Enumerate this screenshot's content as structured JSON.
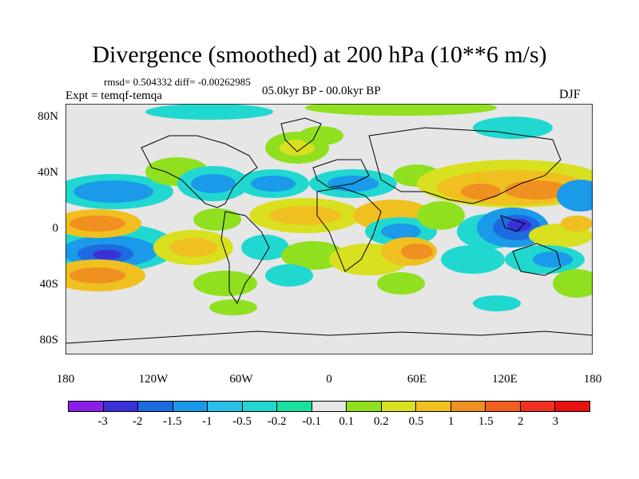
{
  "title": "Divergence (smoothed) at 200 hPa (10**6 m/s)",
  "stats": "rmsd= 0.504332 diff= -0.00262985",
  "expt": "Expt = temqf-temqa",
  "period": "05.0kyr BP - 00.0kyr BP",
  "season": "DJF",
  "lat_labels": [
    "80N",
    "40N",
    "0",
    "40S",
    "80S"
  ],
  "lon_labels": [
    "180",
    "120W",
    "60W",
    "0",
    "60E",
    "120E",
    "180"
  ],
  "colorbar": {
    "labels": [
      "-3",
      "-2",
      "-1.5",
      "-1",
      "-0.5",
      "-0.2",
      "-0.1",
      "0.1",
      "0.2",
      "0.5",
      "1",
      "1.5",
      "2",
      "3"
    ],
    "colors": [
      "#8a20e8",
      "#3a30d8",
      "#1e6ae0",
      "#1a9ae8",
      "#28c0e8",
      "#20d8d0",
      "#18e0a0",
      "#e6e6e6",
      "#90e020",
      "#d8e020",
      "#f0c020",
      "#f09020",
      "#f06020",
      "#f03020",
      "#e81010"
    ]
  }
}
